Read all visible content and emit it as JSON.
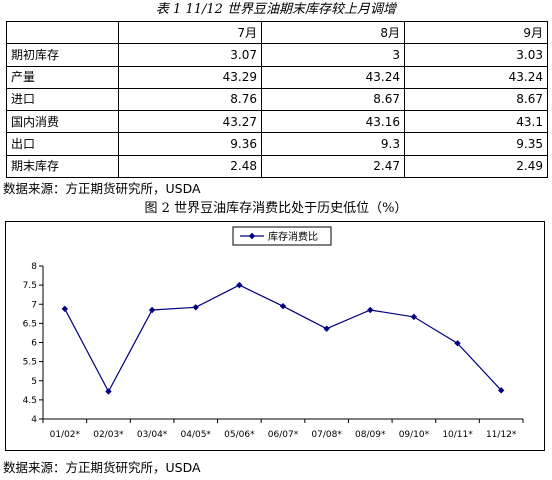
{
  "table": {
    "title": "表 1  11/12 世界豆油期末库存较上月调增",
    "headers": [
      "",
      "7月",
      "8月",
      "9月"
    ],
    "rows": [
      {
        "label": "期初库存",
        "values": [
          "3.07",
          "3",
          "3.03"
        ]
      },
      {
        "label": "产量",
        "values": [
          "43.29",
          "43.24",
          "43.24"
        ]
      },
      {
        "label": "进口",
        "values": [
          "8.76",
          "8.67",
          "8.67"
        ]
      },
      {
        "label": "国内消费",
        "values": [
          "43.27",
          "43.16",
          "43.1"
        ]
      },
      {
        "label": "出口",
        "values": [
          "9.36",
          "9.3",
          "9.35"
        ]
      },
      {
        "label": "期末库存",
        "values": [
          "2.48",
          "2.47",
          "2.49"
        ]
      }
    ],
    "source": "数据来源：方正期货研究所，USDA"
  },
  "chart": {
    "title": "图 2    世界豆油库存消费比处于历史低位（%）",
    "source": "数据来源：方正期货研究所，USDA"
  },
  "chart_data": {
    "type": "line",
    "x": [
      "01/02*",
      "02/03*",
      "03/04*",
      "04/05*",
      "05/06*",
      "06/07*",
      "07/08*",
      "08/09*",
      "09/10*",
      "10/11*",
      "11/12*"
    ],
    "series": [
      {
        "name": "库存消费比",
        "values": [
          6.88,
          4.72,
          6.85,
          6.92,
          7.5,
          6.95,
          6.36,
          6.85,
          6.67,
          5.98,
          4.75
        ],
        "color": "#000080"
      }
    ],
    "ylim": [
      4,
      8
    ],
    "yticks": [
      "4",
      "4.5",
      "5",
      "5.5",
      "6",
      "6.5",
      "7",
      "7.5",
      "8"
    ],
    "legend": "top-left",
    "grid": false
  }
}
